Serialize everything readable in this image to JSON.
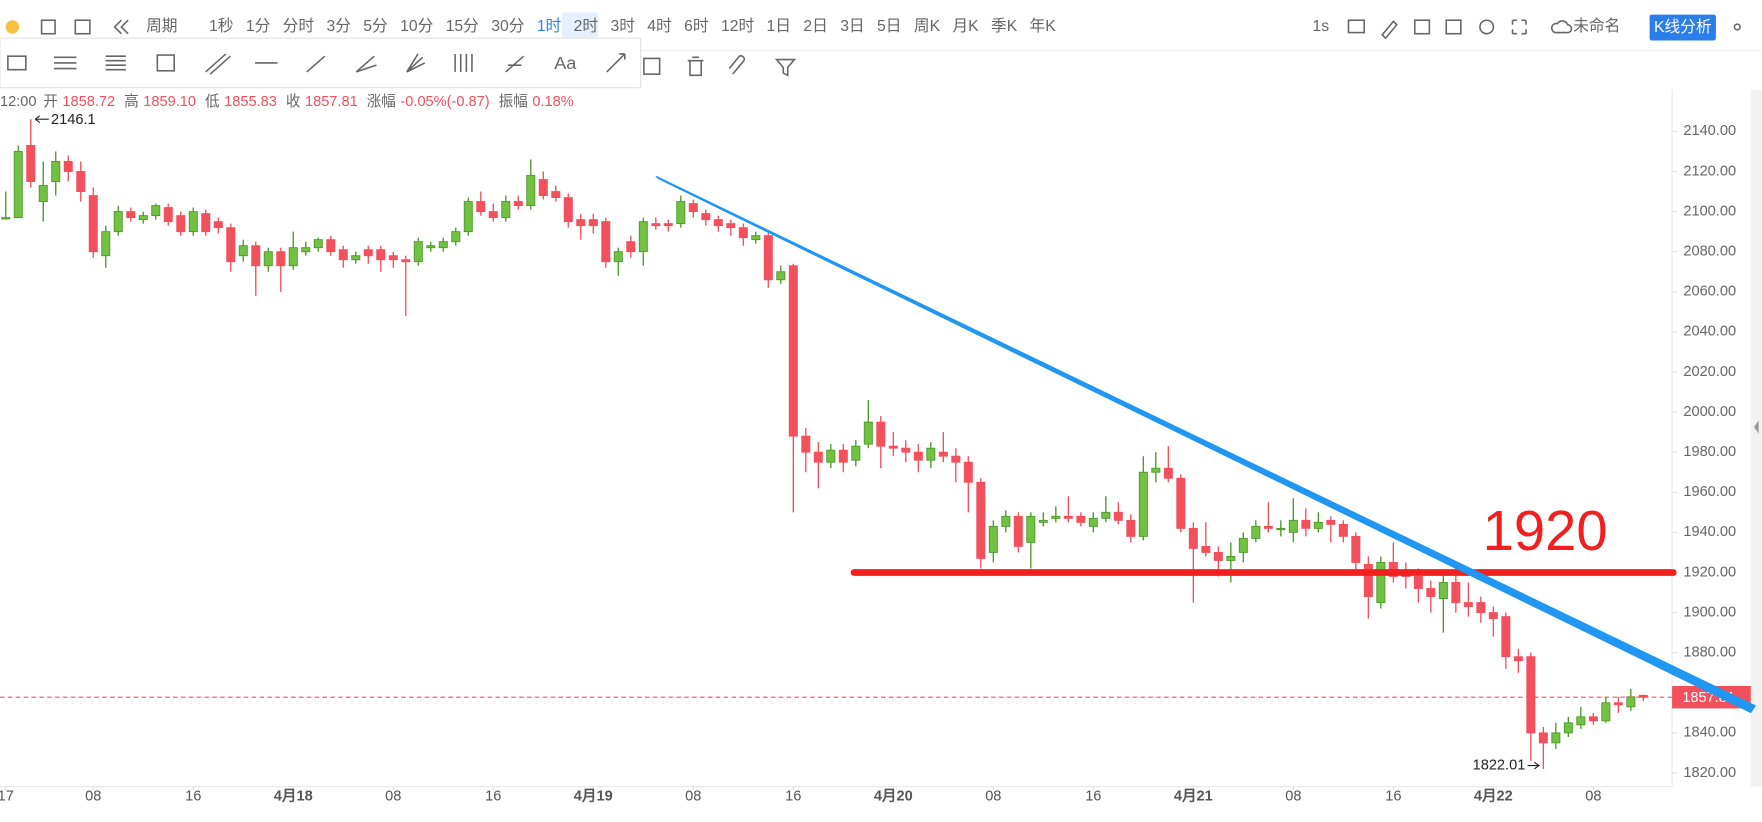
{
  "toolbar": {
    "period_label": "周期",
    "periods": [
      "1秒",
      "1分",
      "分时",
      "3分",
      "5分",
      "10分",
      "15分",
      "30分",
      "1时",
      "2时",
      "3时",
      "4时",
      "6时",
      "12时",
      "1日",
      "2日",
      "3日",
      "5日",
      "周K",
      "月K",
      "季K",
      "年K"
    ],
    "selected": "1时",
    "speed": "1s",
    "layout_name": "未命名",
    "analysis_button": "K线分析",
    "text_tool": "Aa"
  },
  "info_bar": {
    "time": "12:00",
    "items": [
      {
        "label": "开",
        "value": "1858.72"
      },
      {
        "label": "高",
        "value": "1859.10"
      },
      {
        "label": "低",
        "value": "1855.83"
      },
      {
        "label": "收",
        "value": "1857.81"
      },
      {
        "label": "涨幅",
        "value": "-0.05%(-0.87)"
      },
      {
        "label": "振幅",
        "value": "0.18%"
      }
    ]
  },
  "chart_data": {
    "type": "candlestick",
    "up_color": "#72c142",
    "down_color": "#f2505d",
    "candles": [
      [
        2097,
        2110,
        2096,
        2097
      ],
      [
        2097,
        2133,
        2097,
        2130
      ],
      [
        2133,
        2146.1,
        2112,
        2115
      ],
      [
        2105,
        2125,
        2095,
        2113
      ],
      [
        2115,
        2130,
        2108,
        2125
      ],
      [
        2125,
        2128,
        2115,
        2120
      ],
      [
        2120,
        2125,
        2105,
        2110
      ],
      [
        2108,
        2112,
        2077,
        2080
      ],
      [
        2078,
        2093,
        2072,
        2090
      ],
      [
        2090,
        2103,
        2088,
        2100
      ],
      [
        2100,
        2102,
        2095,
        2097
      ],
      [
        2096,
        2100,
        2094,
        2098
      ],
      [
        2098,
        2104,
        2096,
        2103
      ],
      [
        2102,
        2104,
        2093,
        2095
      ],
      [
        2098,
        2100,
        2088,
        2090
      ],
      [
        2090,
        2102,
        2088,
        2100
      ],
      [
        2099,
        2101,
        2088,
        2090
      ],
      [
        2095,
        2097,
        2089,
        2092
      ],
      [
        2092,
        2094,
        2070,
        2075
      ],
      [
        2078,
        2086,
        2075,
        2083
      ],
      [
        2083,
        2085,
        2058,
        2073
      ],
      [
        2073,
        2082,
        2070,
        2080
      ],
      [
        2080,
        2082,
        2060,
        2073
      ],
      [
        2073,
        2090,
        2071,
        2082
      ],
      [
        2080,
        2085,
        2078,
        2082
      ],
      [
        2082,
        2087,
        2080,
        2086
      ],
      [
        2086,
        2088,
        2078,
        2080
      ],
      [
        2081,
        2083,
        2072,
        2076
      ],
      [
        2076,
        2080,
        2074,
        2078
      ],
      [
        2081,
        2083,
        2074,
        2078
      ],
      [
        2081,
        2083,
        2070,
        2076
      ],
      [
        2078,
        2080,
        2072,
        2076
      ],
      [
        2076,
        2078,
        2048,
        2075
      ],
      [
        2075,
        2087,
        2073,
        2085
      ],
      [
        2082,
        2085,
        2080,
        2083
      ],
      [
        2082,
        2087,
        2080,
        2085
      ],
      [
        2085,
        2092,
        2083,
        2090
      ],
      [
        2090,
        2107,
        2088,
        2105
      ],
      [
        2105,
        2110,
        2098,
        2100
      ],
      [
        2100,
        2104,
        2095,
        2097
      ],
      [
        2097,
        2108,
        2095,
        2105
      ],
      [
        2105,
        2108,
        2101,
        2103
      ],
      [
        2103,
        2126,
        2101,
        2118
      ],
      [
        2116,
        2120,
        2106,
        2108
      ],
      [
        2110,
        2113,
        2105,
        2107
      ],
      [
        2107,
        2109,
        2092,
        2095
      ],
      [
        2096,
        2099,
        2086,
        2093
      ],
      [
        2096,
        2099,
        2089,
        2093
      ],
      [
        2095,
        2097,
        2072,
        2075
      ],
      [
        2075,
        2082,
        2068,
        2080
      ],
      [
        2085,
        2088,
        2077,
        2080
      ],
      [
        2080,
        2097,
        2073,
        2095
      ],
      [
        2094,
        2097,
        2091,
        2093
      ],
      [
        2094,
        2096,
        2090,
        2093
      ],
      [
        2094,
        2108,
        2092,
        2105
      ],
      [
        2104,
        2106,
        2097,
        2100
      ],
      [
        2099,
        2101,
        2093,
        2096
      ],
      [
        2096,
        2098,
        2090,
        2093
      ],
      [
        2094,
        2096,
        2088,
        2092
      ],
      [
        2092,
        2094,
        2083,
        2087
      ],
      [
        2086,
        2090,
        2084,
        2088
      ],
      [
        2088,
        2090,
        2062,
        2066
      ],
      [
        2066,
        2073,
        2064,
        2070
      ],
      [
        2073,
        2074,
        1950,
        1988
      ],
      [
        1988,
        1992,
        1970,
        1980
      ],
      [
        1980,
        1985,
        1962,
        1975
      ],
      [
        1975,
        1984,
        1972,
        1981
      ],
      [
        1981,
        1984,
        1970,
        1975
      ],
      [
        1976,
        1986,
        1973,
        1983
      ],
      [
        1984,
        2006,
        1982,
        1995
      ],
      [
        1995,
        1998,
        1972,
        1983
      ],
      [
        1983,
        1990,
        1978,
        1982
      ],
      [
        1982,
        1986,
        1975,
        1980
      ],
      [
        1980,
        1984,
        1970,
        1976
      ],
      [
        1976,
        1985,
        1972,
        1982
      ],
      [
        1980,
        1990,
        1975,
        1978
      ],
      [
        1978,
        1982,
        1965,
        1975
      ],
      [
        1975,
        1978,
        1950,
        1965
      ],
      [
        1965,
        1967,
        1922,
        1927
      ],
      [
        1930,
        1946,
        1925,
        1943
      ],
      [
        1943,
        1951,
        1940,
        1948
      ],
      [
        1948,
        1950,
        1930,
        1933
      ],
      [
        1935,
        1950,
        1922,
        1948
      ],
      [
        1945,
        1950,
        1943,
        1946
      ],
      [
        1947,
        1953,
        1945,
        1948
      ],
      [
        1948,
        1958,
        1945,
        1947
      ],
      [
        1948,
        1950,
        1943,
        1945
      ],
      [
        1943,
        1950,
        1940,
        1947
      ],
      [
        1947,
        1958,
        1945,
        1950
      ],
      [
        1950,
        1955,
        1944,
        1946
      ],
      [
        1946,
        1949,
        1935,
        1938
      ],
      [
        1938,
        1978,
        1936,
        1970
      ],
      [
        1970,
        1980,
        1965,
        1972
      ],
      [
        1972,
        1983,
        1965,
        1967
      ],
      [
        1967,
        1969,
        1940,
        1942
      ],
      [
        1942,
        1945,
        1905,
        1932
      ],
      [
        1933,
        1945,
        1928,
        1930
      ],
      [
        1930,
        1933,
        1918,
        1926
      ],
      [
        1926,
        1935,
        1915,
        1928
      ],
      [
        1930,
        1940,
        1925,
        1937
      ],
      [
        1937,
        1946,
        1935,
        1943
      ],
      [
        1943,
        1955,
        1940,
        1942
      ],
      [
        1942,
        1946,
        1938,
        1942
      ],
      [
        1940,
        1957,
        1935,
        1946
      ],
      [
        1946,
        1952,
        1938,
        1942
      ],
      [
        1942,
        1950,
        1940,
        1945
      ],
      [
        1946,
        1948,
        1935,
        1944
      ],
      [
        1944,
        1946,
        1935,
        1938
      ],
      [
        1938,
        1940,
        1920,
        1925
      ],
      [
        1924,
        1928,
        1897,
        1908
      ],
      [
        1905,
        1928,
        1902,
        1925
      ],
      [
        1925,
        1935,
        1915,
        1918
      ],
      [
        1920,
        1925,
        1912,
        1918
      ],
      [
        1918,
        1922,
        1905,
        1912
      ],
      [
        1912,
        1916,
        1900,
        1908
      ],
      [
        1907,
        1920,
        1890,
        1915
      ],
      [
        1915,
        1922,
        1900,
        1905
      ],
      [
        1905,
        1915,
        1898,
        1903
      ],
      [
        1905,
        1908,
        1895,
        1900
      ],
      [
        1900,
        1903,
        1888,
        1897
      ],
      [
        1898,
        1900,
        1872,
        1878
      ],
      [
        1878,
        1882,
        1870,
        1876
      ],
      [
        1878,
        1880,
        1826,
        1840
      ],
      [
        1840,
        1843,
        1822.01,
        1835
      ],
      [
        1835,
        1845,
        1832,
        1840
      ],
      [
        1840,
        1848,
        1838,
        1845
      ],
      [
        1844,
        1853,
        1842,
        1848
      ],
      [
        1848,
        1850,
        1844,
        1846
      ],
      [
        1846,
        1858,
        1845,
        1855
      ],
      [
        1855,
        1858,
        1850,
        1854
      ],
      [
        1853,
        1862,
        1851,
        1858
      ],
      [
        1858.72,
        1859.1,
        1855.83,
        1857.81
      ]
    ],
    "xlim": [
      -0.46,
      133.3
    ],
    "xticks": [
      {
        "value": 0,
        "label": "17"
      },
      {
        "value": 7,
        "label": "08"
      },
      {
        "value": 15,
        "label": "16"
      },
      {
        "value": 23,
        "label": "4月18"
      },
      {
        "value": 31,
        "label": "08"
      },
      {
        "value": 39,
        "label": "16"
      },
      {
        "value": 47,
        "label": "4月19"
      },
      {
        "value": 55,
        "label": "08"
      },
      {
        "value": 63,
        "label": "16"
      },
      {
        "value": 71,
        "label": "4月20"
      },
      {
        "value": 79,
        "label": "08"
      },
      {
        "value": 87,
        "label": "16"
      },
      {
        "value": 95,
        "label": "4月21"
      },
      {
        "value": 103,
        "label": "08"
      },
      {
        "value": 111,
        "label": "16"
      },
      {
        "value": 119,
        "label": "4月22"
      },
      {
        "value": 127,
        "label": "08"
      }
    ],
    "ylim": [
      1813.2,
      2160.7
    ],
    "yticks": [
      {
        "value": 1820,
        "label": "1820.00"
      },
      {
        "value": 1840,
        "label": "1840.00"
      },
      {
        "value": 1860,
        "label": "1860.00"
      },
      {
        "value": 1880,
        "label": "1880.00"
      },
      {
        "value": 1900,
        "label": "1900.00"
      },
      {
        "value": 1920,
        "label": "1920.00"
      },
      {
        "value": 1940,
        "label": "1940.00"
      },
      {
        "value": 1960,
        "label": "1960.00"
      },
      {
        "value": 1980,
        "label": "1980.00"
      },
      {
        "value": 2000,
        "label": "2000.00"
      },
      {
        "value": 2020,
        "label": "2020.00"
      },
      {
        "value": 2040,
        "label": "2040.00"
      },
      {
        "value": 2060,
        "label": "2060.00"
      },
      {
        "value": 2080,
        "label": "2080.00"
      },
      {
        "value": 2100,
        "label": "2100.00"
      },
      {
        "value": 2120,
        "label": "2120.00"
      },
      {
        "value": 2140,
        "label": "2140.00"
      }
    ],
    "high_marker": 2146.1,
    "low_marker": 1822.01,
    "last_price": 1857.81,
    "hline": {
      "value": 1920,
      "label": "1920",
      "color": "#f21f1f"
    }
  }
}
